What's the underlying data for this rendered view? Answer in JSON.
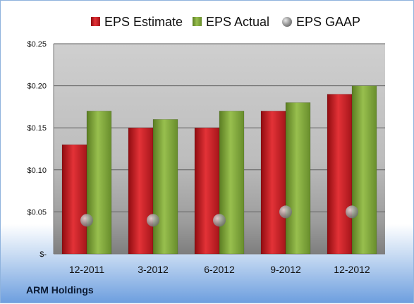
{
  "company_label": "ARM Holdings",
  "chart_data": {
    "type": "bar",
    "categories": [
      "12-2011",
      "3-2012",
      "6-2012",
      "9-2012",
      "12-2012"
    ],
    "series": [
      {
        "name": "EPS Estimate",
        "kind": "bar",
        "color": "#cc1f24",
        "values": [
          0.13,
          0.15,
          0.15,
          0.17,
          0.19
        ]
      },
      {
        "name": "EPS Actual",
        "kind": "bar",
        "color": "#7fa33a",
        "values": [
          0.17,
          0.16,
          0.17,
          0.18,
          0.2
        ]
      },
      {
        "name": "EPS GAAP",
        "kind": "marker",
        "color": "#9a9a9a",
        "values": [
          0.04,
          0.04,
          0.04,
          0.05,
          0.05
        ]
      }
    ],
    "y_ticks": [
      {
        "value": 0,
        "label": "$-"
      },
      {
        "value": 0.05,
        "label": "$0.05"
      },
      {
        "value": 0.1,
        "label": "$0.10"
      },
      {
        "value": 0.15,
        "label": "$0.15"
      },
      {
        "value": 0.2,
        "label": "$0.20"
      },
      {
        "value": 0.25,
        "label": "$0.25"
      }
    ],
    "ylim": [
      0,
      0.25
    ],
    "grid": true,
    "legend_position": "top"
  }
}
